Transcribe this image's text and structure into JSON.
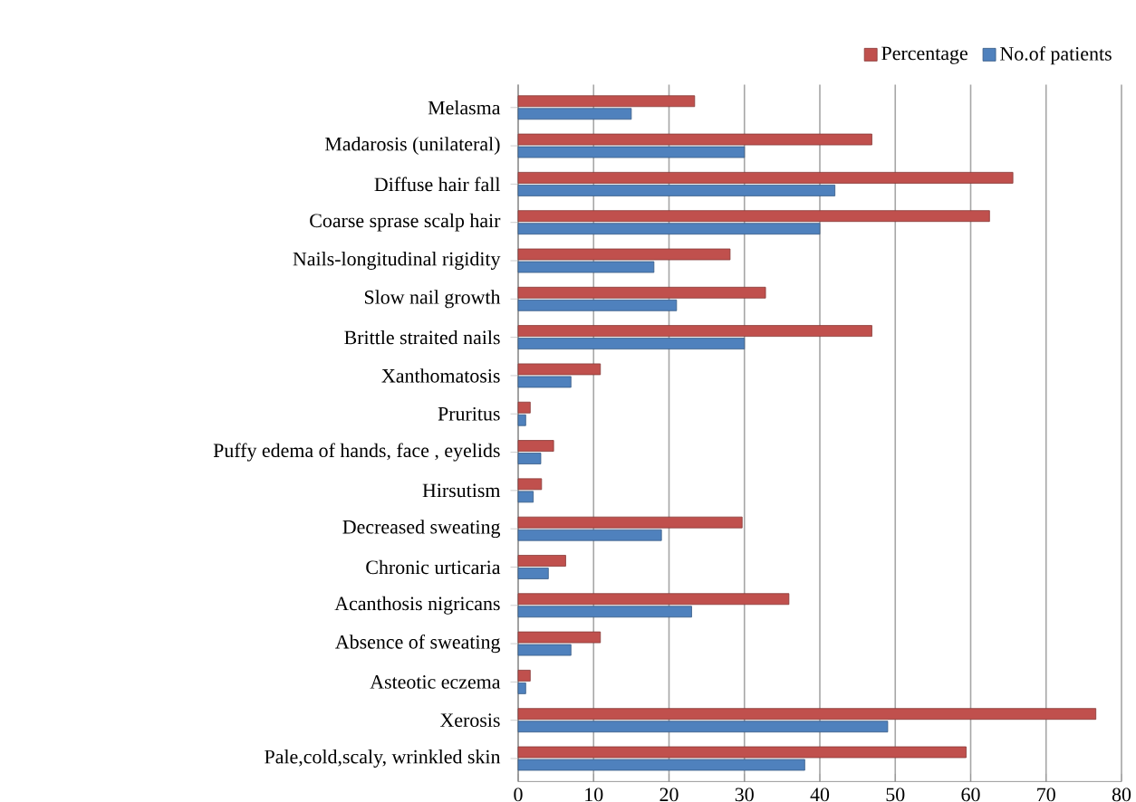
{
  "chart_data": {
    "type": "bar",
    "orientation": "horizontal",
    "categories": [
      "Melasma",
      "Madarosis (unilateral)",
      "Diffuse hair fall",
      "Coarse sprase scalp hair",
      "Nails-longitudinal rigidity",
      "Slow nail growth",
      "Brittle straited nails",
      "Xanthomatosis",
      "Pruritus",
      "Puffy edema of hands, face , eyelids",
      "Hirsutism",
      "Decreased sweating",
      "Chronic urticaria",
      "Acanthosis nigricans",
      "Absence of sweating",
      "Asteotic eczema",
      "Xerosis",
      "Pale,cold,scaly, wrinkled skin"
    ],
    "series": [
      {
        "name": "Percentage",
        "color": "#c0504d",
        "values": [
          23.4,
          46.9,
          65.6,
          62.5,
          28.1,
          32.8,
          46.9,
          10.9,
          1.6,
          4.7,
          3.1,
          29.7,
          6.3,
          35.9,
          10.9,
          1.6,
          76.6,
          59.4
        ]
      },
      {
        "name": "No.of patients",
        "color": "#4f81bd",
        "values": [
          15,
          30,
          42,
          40,
          18,
          21,
          30,
          7,
          1,
          3,
          2,
          19,
          4,
          23,
          7,
          1,
          49,
          38
        ]
      }
    ],
    "xlim": [
      0,
      80
    ],
    "xticks": [
      0,
      10,
      20,
      30,
      40,
      50,
      60,
      70,
      80
    ],
    "grid": "x",
    "legend": "top right"
  }
}
